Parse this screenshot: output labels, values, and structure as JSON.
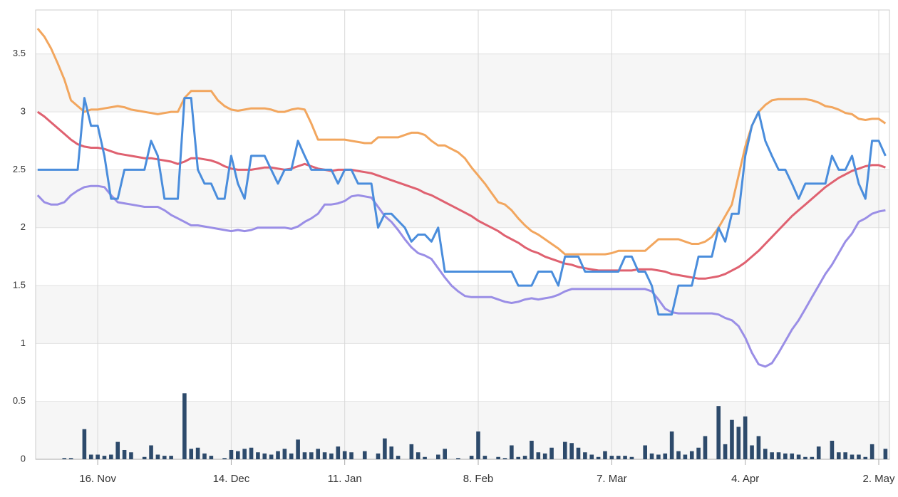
{
  "chart_data": {
    "type": "line",
    "categories": [
      null,
      null,
      null,
      null,
      null,
      null,
      null,
      null,
      null,
      "16. Nov",
      null,
      null,
      null,
      null,
      null,
      null,
      null,
      null,
      null,
      null,
      null,
      null,
      null,
      null,
      null,
      null,
      null,
      null,
      null,
      "14. Dec",
      null,
      null,
      null,
      null,
      null,
      null,
      null,
      null,
      null,
      null,
      null,
      null,
      null,
      null,
      null,
      null,
      "11. Jan",
      null,
      null,
      null,
      null,
      null,
      null,
      null,
      null,
      null,
      null,
      null,
      null,
      null,
      null,
      null,
      null,
      null,
      null,
      null,
      "8. Feb",
      null,
      null,
      null,
      null,
      null,
      null,
      null,
      null,
      null,
      null,
      null,
      null,
      null,
      null,
      null,
      null,
      null,
      null,
      null,
      "7. Mar",
      null,
      null,
      null,
      null,
      null,
      null,
      null,
      null,
      null,
      null,
      null,
      null,
      null,
      null,
      null,
      null,
      null,
      null,
      null,
      "4. Apr",
      null,
      null,
      null,
      null,
      null,
      null,
      null,
      null,
      null,
      null,
      null,
      null,
      null,
      null,
      null,
      null,
      null,
      null,
      null,
      "2. May",
      null
    ],
    "ylim": [
      0,
      3.88
    ],
    "yticks": [
      0,
      0.5,
      1,
      1.5,
      2,
      2.5,
      3,
      3.5
    ],
    "grid": true,
    "series": [
      {
        "type": "bar",
        "color": "#2d4a6b",
        "values": [
          0,
          0,
          0,
          0,
          0.01,
          0.01,
          0,
          0.26,
          0.04,
          0.04,
          0.03,
          0.04,
          0.15,
          0.08,
          0.06,
          0,
          0.02,
          0.12,
          0.04,
          0.03,
          0.03,
          0,
          0.57,
          0.09,
          0.1,
          0.05,
          0.03,
          0,
          0.01,
          0.08,
          0.07,
          0.09,
          0.1,
          0.06,
          0.05,
          0.04,
          0.07,
          0.09,
          0.05,
          0.17,
          0.06,
          0.06,
          0.09,
          0.06,
          0.05,
          0.11,
          0.07,
          0.06,
          0,
          0.07,
          0,
          0.05,
          0.18,
          0.11,
          0.03,
          0,
          0.13,
          0.06,
          0.02,
          0,
          0.04,
          0.09,
          0,
          0.01,
          0,
          0.03,
          0.24,
          0.03,
          0,
          0.02,
          0.01,
          0.12,
          0.02,
          0.03,
          0.16,
          0.06,
          0.05,
          0.1,
          0,
          0.15,
          0.14,
          0.1,
          0.06,
          0.04,
          0.02,
          0.07,
          0.03,
          0.03,
          0.03,
          0.02,
          0,
          0.12,
          0.05,
          0.04,
          0.05,
          0.24,
          0.07,
          0.04,
          0.07,
          0.1,
          0.2,
          0,
          0.46,
          0.13,
          0.34,
          0.28,
          0.37,
          0.12,
          0.2,
          0.09,
          0.06,
          0.06,
          0.05,
          0.05,
          0.04,
          0.02,
          0.02,
          0.11,
          0,
          0.16,
          0.06,
          0.06,
          0.04,
          0.04,
          0.02,
          0.13,
          0,
          0.09
        ]
      },
      {
        "type": "line",
        "color": "#f2a65e",
        "values": [
          3.72,
          3.65,
          3.55,
          3.42,
          3.28,
          3.1,
          3.05,
          3.0,
          3.02,
          3.02,
          3.03,
          3.04,
          3.05,
          3.04,
          3.02,
          3.01,
          3.0,
          2.99,
          2.98,
          2.99,
          3.0,
          3.0,
          3.12,
          3.18,
          3.18,
          3.18,
          3.18,
          3.1,
          3.05,
          3.02,
          3.01,
          3.02,
          3.03,
          3.03,
          3.03,
          3.02,
          3.0,
          3.0,
          3.02,
          3.03,
          3.02,
          2.9,
          2.76,
          2.76,
          2.76,
          2.76,
          2.76,
          2.75,
          2.74,
          2.73,
          2.73,
          2.78,
          2.78,
          2.78,
          2.78,
          2.8,
          2.82,
          2.82,
          2.8,
          2.75,
          2.71,
          2.71,
          2.68,
          2.65,
          2.6,
          2.52,
          2.45,
          2.38,
          2.3,
          2.22,
          2.2,
          2.15,
          2.08,
          2.02,
          1.97,
          1.94,
          1.9,
          1.86,
          1.82,
          1.77,
          1.77,
          1.77,
          1.77,
          1.77,
          1.77,
          1.77,
          1.78,
          1.8,
          1.8,
          1.8,
          1.8,
          1.8,
          1.85,
          1.9,
          1.9,
          1.9,
          1.9,
          1.88,
          1.86,
          1.86,
          1.88,
          1.92,
          2.0,
          2.1,
          2.2,
          2.45,
          2.7,
          2.88,
          3.0,
          3.06,
          3.1,
          3.11,
          3.11,
          3.11,
          3.11,
          3.11,
          3.1,
          3.08,
          3.05,
          3.04,
          3.02,
          2.99,
          2.98,
          2.94,
          2.93,
          2.94,
          2.94,
          2.9
        ]
      },
      {
        "type": "line",
        "color": "#df6170",
        "values": [
          3.0,
          2.96,
          2.91,
          2.86,
          2.81,
          2.76,
          2.72,
          2.7,
          2.69,
          2.69,
          2.68,
          2.66,
          2.64,
          2.63,
          2.62,
          2.61,
          2.6,
          2.6,
          2.59,
          2.58,
          2.57,
          2.55,
          2.57,
          2.6,
          2.6,
          2.59,
          2.58,
          2.56,
          2.53,
          2.51,
          2.5,
          2.5,
          2.5,
          2.51,
          2.52,
          2.52,
          2.51,
          2.5,
          2.51,
          2.53,
          2.55,
          2.53,
          2.51,
          2.5,
          2.49,
          2.5,
          2.5,
          2.5,
          2.49,
          2.48,
          2.47,
          2.45,
          2.43,
          2.41,
          2.39,
          2.37,
          2.35,
          2.33,
          2.3,
          2.28,
          2.25,
          2.22,
          2.19,
          2.16,
          2.13,
          2.1,
          2.06,
          2.03,
          2.0,
          1.97,
          1.93,
          1.9,
          1.87,
          1.83,
          1.8,
          1.78,
          1.75,
          1.73,
          1.71,
          1.69,
          1.68,
          1.66,
          1.65,
          1.64,
          1.63,
          1.63,
          1.63,
          1.63,
          1.63,
          1.63,
          1.64,
          1.64,
          1.64,
          1.63,
          1.62,
          1.6,
          1.59,
          1.58,
          1.57,
          1.56,
          1.56,
          1.57,
          1.58,
          1.6,
          1.63,
          1.66,
          1.7,
          1.75,
          1.8,
          1.86,
          1.92,
          1.98,
          2.04,
          2.1,
          2.15,
          2.2,
          2.25,
          2.3,
          2.35,
          2.39,
          2.43,
          2.46,
          2.49,
          2.51,
          2.53,
          2.54,
          2.54,
          2.52
        ]
      },
      {
        "type": "line",
        "color": "#9a8ee6",
        "values": [
          2.28,
          2.22,
          2.2,
          2.2,
          2.22,
          2.28,
          2.32,
          2.35,
          2.36,
          2.36,
          2.35,
          2.28,
          2.22,
          2.21,
          2.2,
          2.19,
          2.18,
          2.18,
          2.18,
          2.15,
          2.11,
          2.08,
          2.05,
          2.02,
          2.02,
          2.01,
          2.0,
          1.99,
          1.98,
          1.97,
          1.98,
          1.97,
          1.98,
          2.0,
          2.0,
          2.0,
          2.0,
          2.0,
          1.99,
          2.01,
          2.05,
          2.08,
          2.12,
          2.2,
          2.2,
          2.21,
          2.23,
          2.27,
          2.28,
          2.27,
          2.26,
          2.18,
          2.1,
          2.05,
          1.98,
          1.9,
          1.83,
          1.78,
          1.76,
          1.73,
          1.65,
          1.57,
          1.5,
          1.45,
          1.41,
          1.4,
          1.4,
          1.4,
          1.4,
          1.38,
          1.36,
          1.35,
          1.36,
          1.38,
          1.39,
          1.38,
          1.39,
          1.4,
          1.42,
          1.45,
          1.47,
          1.47,
          1.47,
          1.47,
          1.47,
          1.47,
          1.47,
          1.47,
          1.47,
          1.47,
          1.47,
          1.47,
          1.45,
          1.38,
          1.3,
          1.27,
          1.26,
          1.26,
          1.26,
          1.26,
          1.26,
          1.26,
          1.25,
          1.22,
          1.2,
          1.15,
          1.05,
          0.92,
          0.82,
          0.8,
          0.83,
          0.92,
          1.02,
          1.12,
          1.2,
          1.3,
          1.4,
          1.5,
          1.6,
          1.68,
          1.78,
          1.88,
          1.95,
          2.05,
          2.08,
          2.12,
          2.14,
          2.15
        ]
      },
      {
        "type": "line",
        "color": "#4a8ddc",
        "values": [
          2.5,
          2.5,
          2.5,
          2.5,
          2.5,
          2.5,
          2.5,
          3.12,
          2.88,
          2.88,
          2.62,
          2.25,
          2.25,
          2.5,
          2.5,
          2.5,
          2.5,
          2.75,
          2.62,
          2.25,
          2.25,
          2.25,
          3.12,
          3.12,
          2.5,
          2.38,
          2.38,
          2.25,
          2.25,
          2.62,
          2.38,
          2.25,
          2.62,
          2.62,
          2.62,
          2.5,
          2.38,
          2.5,
          2.5,
          2.75,
          2.62,
          2.5,
          2.5,
          2.5,
          2.5,
          2.38,
          2.5,
          2.5,
          2.38,
          2.38,
          2.38,
          2.0,
          2.12,
          2.12,
          2.06,
          2.0,
          1.88,
          1.94,
          1.94,
          1.88,
          2.0,
          1.62,
          1.62,
          1.62,
          1.62,
          1.62,
          1.62,
          1.62,
          1.62,
          1.62,
          1.62,
          1.62,
          1.5,
          1.5,
          1.5,
          1.62,
          1.62,
          1.62,
          1.5,
          1.75,
          1.75,
          1.75,
          1.62,
          1.62,
          1.62,
          1.62,
          1.62,
          1.62,
          1.75,
          1.75,
          1.62,
          1.62,
          1.5,
          1.25,
          1.25,
          1.25,
          1.5,
          1.5,
          1.5,
          1.75,
          1.75,
          1.75,
          2.0,
          1.88,
          2.12,
          2.12,
          2.62,
          2.88,
          3.0,
          2.75,
          2.62,
          2.5,
          2.5,
          2.38,
          2.25,
          2.38,
          2.38,
          2.38,
          2.38,
          2.62,
          2.5,
          2.5,
          2.62,
          2.38,
          2.25,
          2.75,
          2.75,
          2.62
        ]
      }
    ]
  }
}
